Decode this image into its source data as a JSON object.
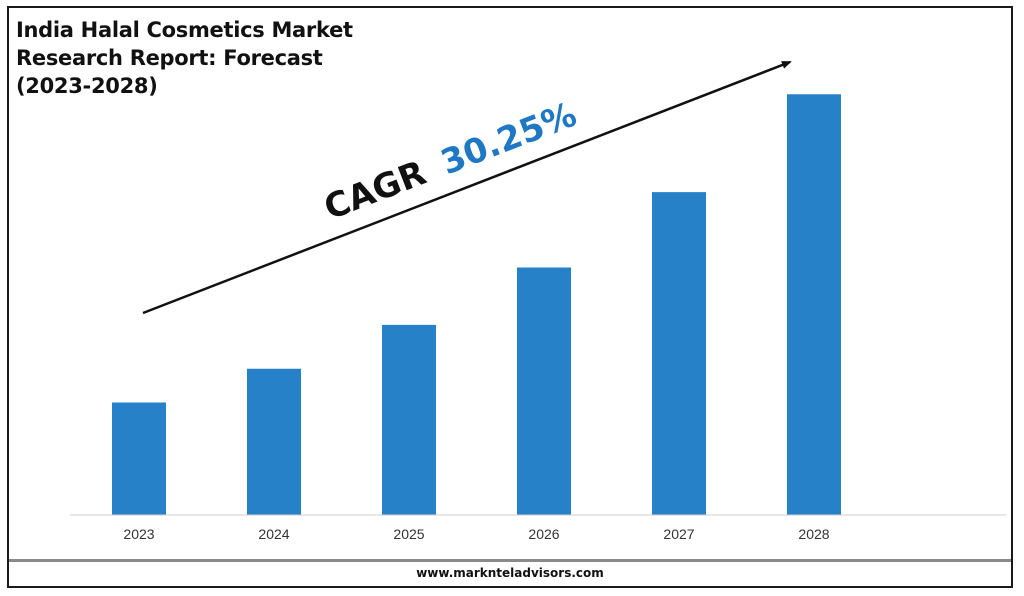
{
  "title_lines": [
    "India Halal Cosmetics Market",
    "Research Report: Forecast",
    "(2023-2028)"
  ],
  "cagr": {
    "label": "CAGR",
    "value": "30.25%"
  },
  "footer": {
    "url": "www.marknteladvisors.com"
  },
  "colors": {
    "bar": "#2681c8",
    "cagr_value": "#1f78c4",
    "text": "#111111"
  },
  "chart_data": {
    "type": "bar",
    "title": "India Halal Cosmetics Market Research Report: Forecast (2023-2028)",
    "categories": [
      "2023",
      "2024",
      "2025",
      "2026",
      "2027",
      "2028"
    ],
    "values": [
      1.0,
      1.3,
      1.69,
      2.2,
      2.87,
      3.74
    ],
    "xlabel": "",
    "ylabel": "",
    "ylim": [
      0,
      4
    ],
    "grid": false,
    "legend": "none",
    "annotation": "CAGR 30.25%"
  }
}
